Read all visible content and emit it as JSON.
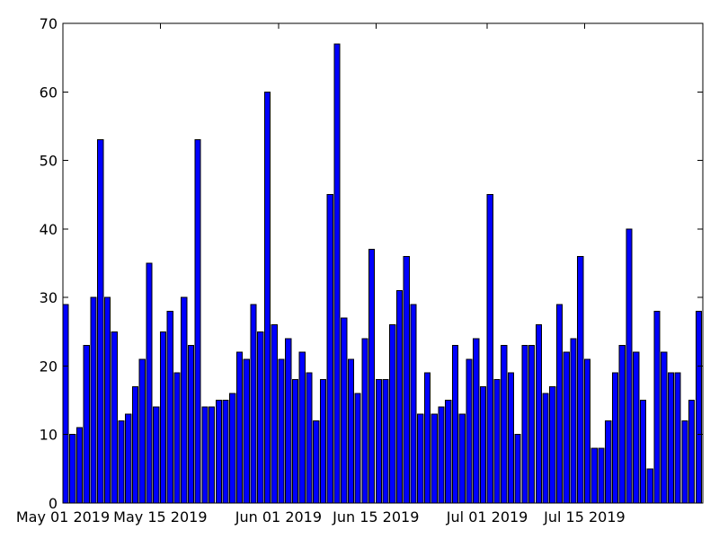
{
  "chart_data": {
    "type": "bar",
    "title": "",
    "xlabel": "",
    "ylabel": "",
    "ylim": [
      0,
      70
    ],
    "yticks": [
      0,
      10,
      20,
      30,
      40,
      50,
      60,
      70
    ],
    "grid": false,
    "bar_color": "#0000ff",
    "x_start_date": "2019-05-01",
    "x_end_date": "2019-08-01",
    "xtick_labels": [
      {
        "date": "2019-05-01",
        "label": "May 01 2019"
      },
      {
        "date": "2019-05-15",
        "label": "May 15 2019"
      },
      {
        "date": "2019-06-01",
        "label": "Jun 01 2019"
      },
      {
        "date": "2019-06-15",
        "label": "Jun 15 2019"
      },
      {
        "date": "2019-07-01",
        "label": "Jul 01 2019"
      },
      {
        "date": "2019-07-15",
        "label": "Jul 15 2019"
      }
    ],
    "values": [
      29,
      10,
      11,
      23,
      30,
      53,
      30,
      25,
      12,
      13,
      17,
      21,
      35,
      14,
      25,
      28,
      19,
      30,
      23,
      53,
      14,
      14,
      15,
      15,
      16,
      22,
      21,
      29,
      25,
      60,
      26,
      21,
      24,
      18,
      22,
      19,
      12,
      18,
      45,
      67,
      27,
      21,
      16,
      24,
      37,
      18,
      18,
      26,
      31,
      36,
      29,
      13,
      19,
      13,
      14,
      15,
      23,
      13,
      21,
      24,
      17,
      45,
      18,
      23,
      19,
      10,
      23,
      23,
      26,
      16,
      17,
      29,
      22,
      24,
      36,
      21,
      8,
      8,
      12,
      19,
      23,
      40,
      22,
      15,
      5,
      28,
      22,
      19,
      19,
      12,
      15,
      28
    ]
  }
}
